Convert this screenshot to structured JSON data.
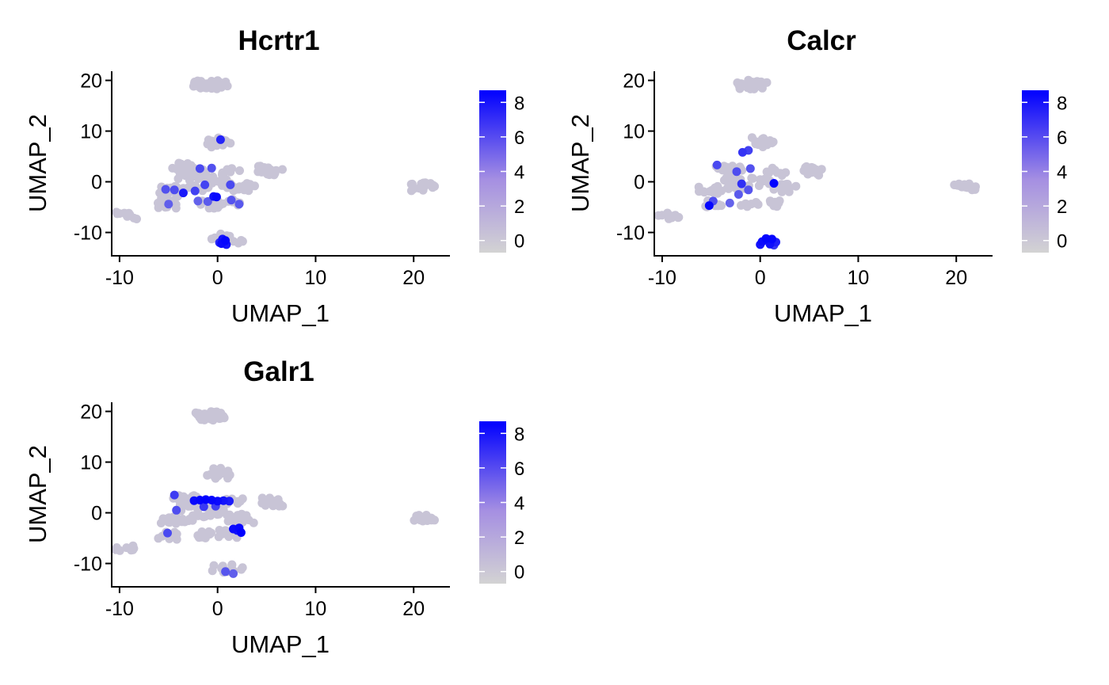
{
  "chart_data": [
    {
      "type": "scatter",
      "title": "Hcrtr1",
      "xlabel": "UMAP_1",
      "ylabel": "UMAP_2",
      "xlim": [
        -10.8,
        23.7
      ],
      "ylim": [
        -14.6,
        21.8
      ],
      "xticks": [
        "-10",
        "0",
        "10",
        "20"
      ],
      "yticks": [
        "20",
        "10",
        "0",
        "-10"
      ],
      "colorbar": {
        "ticks": [
          "8",
          "6",
          "4",
          "2",
          "0"
        ],
        "range": [
          -0.7,
          8.7
        ],
        "low_color": "#d3d3d3",
        "high_color": "#0000ff"
      },
      "background_cells": [
        [
          -1.5,
          19
        ],
        [
          -1,
          19.3
        ],
        [
          -0.5,
          19
        ],
        [
          0,
          19.2
        ],
        [
          -9.3,
          -6.7
        ],
        [
          5.2,
          2.3
        ],
        [
          5.6,
          2.1
        ],
        [
          20.8,
          -1
        ],
        [
          21.2,
          -0.9
        ],
        [
          0.5,
          -11
        ],
        [
          1.5,
          -11.5
        ],
        [
          -5,
          -4.5
        ],
        [
          -4.8,
          -3.5
        ],
        [
          0,
          8
        ],
        [
          0.4,
          7.5
        ],
        [
          -3.5,
          3
        ],
        [
          -2.5,
          2.5
        ],
        [
          -3,
          1
        ],
        [
          -1.5,
          1.5
        ],
        [
          1.5,
          2
        ],
        [
          -4,
          -1.5
        ],
        [
          -2,
          -1
        ],
        [
          0,
          0
        ],
        [
          2,
          -1
        ],
        [
          -1,
          -4.5
        ],
        [
          1.2,
          -4.2
        ],
        [
          -5.2,
          -1.6
        ],
        [
          2.7,
          -1.2
        ]
      ],
      "expressing_cells": [
        {
          "x": -5.3,
          "y": -1.5,
          "v": 4.8
        },
        {
          "x": -4.4,
          "y": -1.6,
          "v": 5.0
        },
        {
          "x": -5.0,
          "y": -4.4,
          "v": 4.2
        },
        {
          "x": -3.5,
          "y": -2.2,
          "v": 7.5
        },
        {
          "x": -2.3,
          "y": -1.8,
          "v": 5.6
        },
        {
          "x": -1.8,
          "y": 2.6,
          "v": 5.2
        },
        {
          "x": -0.6,
          "y": 2.7,
          "v": 4.8
        },
        {
          "x": -1.3,
          "y": -0.6,
          "v": 5.5
        },
        {
          "x": -0.4,
          "y": -2.9,
          "v": 8.0
        },
        {
          "x": -0.1,
          "y": -3.0,
          "v": 8.4
        },
        {
          "x": 0.3,
          "y": 8.3,
          "v": 7.0
        },
        {
          "x": -2.0,
          "y": -3.8,
          "v": 4.0
        },
        {
          "x": -1.0,
          "y": -3.9,
          "v": 4.4
        },
        {
          "x": 1.3,
          "y": -0.6,
          "v": 5.2
        },
        {
          "x": 1.4,
          "y": -3.6,
          "v": 4.7
        },
        {
          "x": 2.2,
          "y": -4.4,
          "v": 4.5
        },
        {
          "x": 0.5,
          "y": -11.3,
          "v": 7.8
        },
        {
          "x": 0.8,
          "y": -11.6,
          "v": 8.4
        },
        {
          "x": 0.4,
          "y": -12.2,
          "v": 8.2
        },
        {
          "x": 0.9,
          "y": -12.4,
          "v": 7.6
        },
        {
          "x": 0.2,
          "y": -12.0,
          "v": 6.8
        }
      ]
    },
    {
      "type": "scatter",
      "title": "Calcr",
      "xlabel": "UMAP_1",
      "ylabel": "UMAP_2",
      "xlim": [
        -10.8,
        23.7
      ],
      "ylim": [
        -14.6,
        21.8
      ],
      "xticks": [
        "-10",
        "0",
        "10",
        "20"
      ],
      "yticks": [
        "20",
        "10",
        "0",
        "-10"
      ],
      "colorbar": {
        "ticks": [
          "8",
          "6",
          "4",
          "2",
          "0"
        ],
        "range": [
          -0.7,
          8.7
        ],
        "low_color": "#d3d3d3",
        "high_color": "#0000ff"
      },
      "background_cells": [
        [
          -1.5,
          19
        ],
        [
          -1,
          19.3
        ],
        [
          -0.5,
          19
        ],
        [
          0,
          19.2
        ],
        [
          -9.3,
          -6.7
        ],
        [
          5.2,
          2.3
        ],
        [
          5.6,
          2.1
        ],
        [
          20.8,
          -1
        ],
        [
          21.2,
          -0.9
        ],
        [
          -5,
          -4.5
        ],
        [
          0,
          8
        ],
        [
          0.4,
          7.5
        ],
        [
          -3.5,
          3
        ],
        [
          -2.5,
          2.5
        ],
        [
          -3,
          1
        ],
        [
          1.5,
          2
        ],
        [
          -4,
          -1.5
        ],
        [
          -2,
          -1
        ],
        [
          0,
          0
        ],
        [
          2,
          -1
        ],
        [
          -1,
          -4.5
        ],
        [
          1.2,
          -4.2
        ],
        [
          -5.2,
          -1.6
        ],
        [
          2.7,
          -1.2
        ]
      ],
      "expressing_cells": [
        {
          "x": -4.4,
          "y": 3.3,
          "v": 5.2
        },
        {
          "x": -2.4,
          "y": 2.0,
          "v": 5.0
        },
        {
          "x": -1.0,
          "y": 2.6,
          "v": 4.8
        },
        {
          "x": -1.8,
          "y": 5.8,
          "v": 6.2
        },
        {
          "x": -1.2,
          "y": 6.2,
          "v": 5.6
        },
        {
          "x": -1.9,
          "y": -0.4,
          "v": 6.4
        },
        {
          "x": -2.2,
          "y": -2.5,
          "v": 4.4
        },
        {
          "x": -3.1,
          "y": -4.2,
          "v": 4.0
        },
        {
          "x": -1.2,
          "y": -1.6,
          "v": 4.6
        },
        {
          "x": 1.4,
          "y": -0.3,
          "v": 8.6
        },
        {
          "x": -5.2,
          "y": -4.7,
          "v": 8.4
        },
        {
          "x": -4.8,
          "y": -3.8,
          "v": 5.0
        },
        {
          "x": 0.2,
          "y": -11.8,
          "v": 8.2
        },
        {
          "x": 0.6,
          "y": -11.2,
          "v": 8.5
        },
        {
          "x": 1.2,
          "y": -11.3,
          "v": 8.4
        },
        {
          "x": 1.0,
          "y": -12.3,
          "v": 8.0
        },
        {
          "x": 1.6,
          "y": -11.9,
          "v": 7.2
        },
        {
          "x": 0.0,
          "y": -12.4,
          "v": 7.8
        },
        {
          "x": 1.4,
          "y": -12.5,
          "v": 6.0
        }
      ]
    },
    {
      "type": "scatter",
      "title": "Galr1",
      "xlabel": "UMAP_1",
      "ylabel": "UMAP_2",
      "xlim": [
        -10.8,
        23.7
      ],
      "ylim": [
        -14.6,
        21.8
      ],
      "xticks": [
        "-10",
        "0",
        "10",
        "20"
      ],
      "yticks": [
        "20",
        "10",
        "0",
        "-10"
      ],
      "colorbar": {
        "ticks": [
          "8",
          "6",
          "4",
          "2",
          "0"
        ],
        "range": [
          -0.7,
          8.7
        ],
        "low_color": "#d3d3d3",
        "high_color": "#0000ff"
      },
      "background_cells": [
        [
          -1.5,
          19
        ],
        [
          -1,
          19.3
        ],
        [
          -0.5,
          19
        ],
        [
          0,
          19.2
        ],
        [
          -9.3,
          -6.7
        ],
        [
          5.2,
          2.3
        ],
        [
          5.6,
          2.1
        ],
        [
          20.8,
          -1
        ],
        [
          21.2,
          -0.9
        ],
        [
          0.5,
          -11
        ],
        [
          1.5,
          -11.5
        ],
        [
          -5,
          -4.5
        ],
        [
          0,
          8
        ],
        [
          0.4,
          7.5
        ],
        [
          -3.5,
          3
        ],
        [
          -2.5,
          2.5
        ],
        [
          -3,
          1
        ],
        [
          -1.5,
          1.5
        ],
        [
          1.5,
          2
        ],
        [
          -4,
          -1.5
        ],
        [
          -2,
          -1
        ],
        [
          0,
          0
        ],
        [
          2,
          -1
        ],
        [
          -1,
          -4.5
        ],
        [
          1.2,
          -4.2
        ],
        [
          -5.2,
          -1.6
        ],
        [
          2.7,
          -1.2
        ]
      ],
      "expressing_cells": [
        {
          "x": -4.4,
          "y": 3.5,
          "v": 5.8
        },
        {
          "x": -4.2,
          "y": 0.5,
          "v": 5.0
        },
        {
          "x": -2.4,
          "y": 2.4,
          "v": 8.3
        },
        {
          "x": -1.8,
          "y": 2.5,
          "v": 8.5
        },
        {
          "x": -1.2,
          "y": 2.6,
          "v": 8.6
        },
        {
          "x": -0.6,
          "y": 2.5,
          "v": 8.4
        },
        {
          "x": 0.0,
          "y": 2.3,
          "v": 8.2
        },
        {
          "x": 0.6,
          "y": 2.4,
          "v": 7.8
        },
        {
          "x": 1.2,
          "y": 2.3,
          "v": 7.4
        },
        {
          "x": -1.4,
          "y": 1.2,
          "v": 6.0
        },
        {
          "x": -0.2,
          "y": 1.3,
          "v": 5.6
        },
        {
          "x": 1.6,
          "y": -3.2,
          "v": 8.2
        },
        {
          "x": 2.2,
          "y": -3.0,
          "v": 8.4
        },
        {
          "x": 2.4,
          "y": -3.9,
          "v": 8.6
        },
        {
          "x": 2.0,
          "y": -3.5,
          "v": 7.6
        },
        {
          "x": -5.1,
          "y": -4.0,
          "v": 5.2
        },
        {
          "x": 0.8,
          "y": -11.6,
          "v": 4.6
        },
        {
          "x": 1.6,
          "y": -12.0,
          "v": 4.2
        }
      ]
    }
  ]
}
